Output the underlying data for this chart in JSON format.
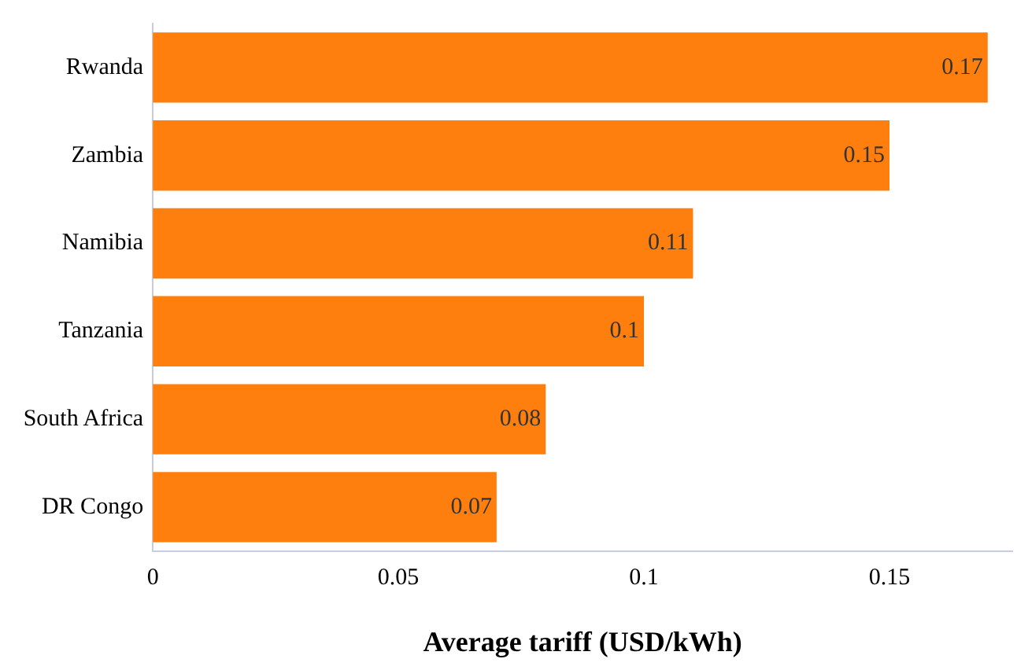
{
  "chart_data": {
    "type": "bar",
    "orientation": "horizontal",
    "xlabel": "Average tariff (USD/kWh)",
    "categories": [
      "Rwanda",
      "Zambia",
      "Namibia",
      "Tanzania",
      "South Africa",
      "DR Congo"
    ],
    "values": [
      0.17,
      0.15,
      0.11,
      0.1,
      0.08,
      0.07
    ],
    "value_labels": [
      "0.17",
      "0.15",
      "0.11",
      "0.1",
      "0.08",
      "0.07"
    ],
    "color": "#ff7f0e",
    "xlim": [
      0,
      0.175
    ],
    "xticks": [
      0,
      0.05,
      0.1,
      0.15
    ],
    "grid": false,
    "legend": false
  }
}
